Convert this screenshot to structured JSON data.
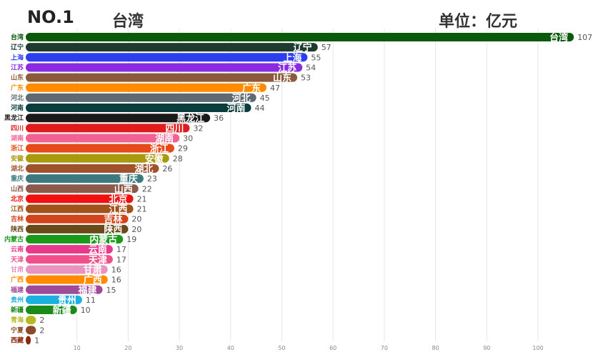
{
  "header": {
    "rank": "NO.1",
    "leader": "台湾",
    "unit": "单位：亿元"
  },
  "chart_data": {
    "type": "bar",
    "orientation": "horizontal",
    "xlim": [
      0,
      108
    ],
    "grid": true,
    "x_ticks": [
      10,
      20,
      30,
      40,
      50,
      60,
      70,
      80,
      90,
      100
    ],
    "categories": [
      "台湾",
      "辽宁",
      "上海",
      "江苏",
      "山东",
      "广东",
      "河北",
      "河南",
      "黑龙江",
      "四川",
      "湖南",
      "浙江",
      "安徽",
      "湖北",
      "重庆",
      "山西",
      "北京",
      "江西",
      "吉林",
      "陕西",
      "内蒙古",
      "云南",
      "天津",
      "甘肃",
      "广西",
      "福建",
      "贵州",
      "新疆",
      "青海",
      "宁夏",
      "西藏"
    ],
    "values": [
      107,
      57,
      55,
      54,
      53,
      47,
      45,
      44,
      36,
      32,
      30,
      29,
      28,
      26,
      23,
      22,
      21,
      21,
      20,
      20,
      19,
      17,
      17,
      16,
      16,
      15,
      11,
      10,
      2,
      2,
      1
    ],
    "colors": [
      "#0b5a0b",
      "#1e3b2e",
      "#2b3ff0",
      "#8a2be2",
      "#8b5a3c",
      "#ff8c00",
      "#5f6a72",
      "#0a3d3d",
      "#1a1a1a",
      "#e01b1b",
      "#f06292",
      "#e64a19",
      "#a89a0e",
      "#a0522d",
      "#3c7a80",
      "#8b5a4a",
      "#f01010",
      "#a0521a",
      "#d2441a",
      "#6b4a1a",
      "#1a9a1a",
      "#e83a8a",
      "#f0508a",
      "#e893c0",
      "#ff8c00",
      "#a04a9a",
      "#1ab0e0",
      "#1a8a1a",
      "#b8b825",
      "#8b4a2a",
      "#8b2a0a"
    ]
  }
}
